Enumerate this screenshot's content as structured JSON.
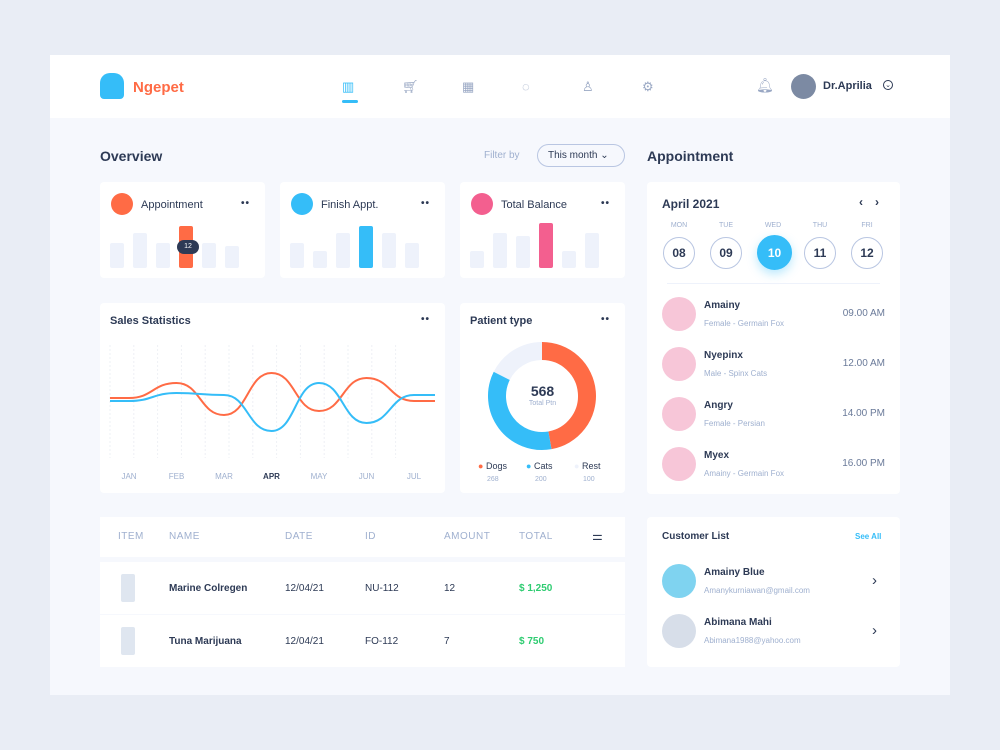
{
  "brand": {
    "name": "Ngepet",
    "color": "#ff6b45"
  },
  "nav": [
    "chart-icon",
    "cart-icon",
    "calendar-icon",
    "chat-icon",
    "user-icon",
    "gear-icon"
  ],
  "user": {
    "name": "Dr.Aprilia"
  },
  "overview": {
    "title": "Overview",
    "filter_label": "Filter by",
    "filter_value": "This month"
  },
  "stats": [
    {
      "label": "Appointment",
      "color": "#ff6b45",
      "tooltip": "12",
      "bars": [
        50,
        70,
        50,
        85,
        50,
        45
      ],
      "active": 3
    },
    {
      "label": "Finish Appt.",
      "color": "#35bdf8",
      "bars": [
        50,
        35,
        70,
        85,
        70,
        50
      ],
      "active": 3
    },
    {
      "label": "Total Balance",
      "color": "#f35f8f",
      "bars": [
        35,
        70,
        65,
        90,
        35,
        70
      ],
      "active": 3
    }
  ],
  "sales": {
    "title": "Sales Statistics",
    "months": [
      "JAN",
      "FEB",
      "MAR",
      "APR",
      "MAY",
      "JUN",
      "JUL"
    ],
    "active_month": "APR"
  },
  "chart_data": {
    "type": "line",
    "categories": [
      "JAN",
      "FEB",
      "MAR",
      "APR",
      "MAY",
      "JUN",
      "JUL"
    ],
    "series": [
      {
        "color": "#ff6b45",
        "values": [
          55,
          70,
          38,
          80,
          42,
          75,
          52
        ]
      },
      {
        "color": "#35bdf8",
        "values": [
          52,
          60,
          58,
          22,
          70,
          30,
          58
        ]
      }
    ]
  },
  "patient": {
    "title": "Patient type",
    "total": "568",
    "total_label": "Total Ptn",
    "segments": [
      {
        "label": "Dogs",
        "value": 268,
        "color": "#ff6b45"
      },
      {
        "label": "Cats",
        "value": 200,
        "color": "#35bdf8"
      },
      {
        "label": "Rest",
        "value": 100,
        "color": "#eef2fb"
      }
    ]
  },
  "table": {
    "headers": [
      "ITEM",
      "NAME",
      "DATE",
      "ID",
      "AMOUNT",
      "TOTAL"
    ],
    "rows": [
      {
        "name": "Marine Colregen",
        "date": "12/04/21",
        "id": "NU-112",
        "amount": "12",
        "total": "$ 1,250"
      },
      {
        "name": "Tuna Marijuana",
        "date": "12/04/21",
        "id": "FO-112",
        "amount": "7",
        "total": "$ 750"
      }
    ]
  },
  "appointment": {
    "title": "Appointment",
    "month": "April 2021",
    "days": [
      {
        "d": "MON",
        "n": "08"
      },
      {
        "d": "TUE",
        "n": "09"
      },
      {
        "d": "WED",
        "n": "10"
      },
      {
        "d": "THU",
        "n": "11"
      },
      {
        "d": "FRI",
        "n": "12"
      }
    ],
    "selected": 2,
    "items": [
      {
        "name": "Amainy",
        "sub": "Female - Germain Fox",
        "time": "09.00 AM"
      },
      {
        "name": "Nyepinx",
        "sub": "Male - Spinx Cats",
        "time": "12.00 AM"
      },
      {
        "name": "Angry",
        "sub": "Female - Persian",
        "time": "14.00 PM"
      },
      {
        "name": "Myex",
        "sub": "Amainy - Germain Fox",
        "time": "16.00 PM"
      }
    ]
  },
  "customers": {
    "title": "Customer List",
    "see_all": "See All",
    "items": [
      {
        "name": "Amainy Blue",
        "email": "Amanykurniawan@gmail.com"
      },
      {
        "name": "Abimana Mahi",
        "email": "Abimana1988@yahoo.com"
      }
    ]
  }
}
